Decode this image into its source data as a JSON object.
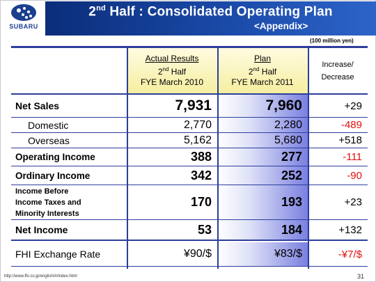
{
  "brand": {
    "logo_text": "SUBARU"
  },
  "header": {
    "title_pre": "2",
    "title_sup": "nd",
    "title_post": " Half : Consolidated Operating Plan",
    "subtitle": "<Appendix>"
  },
  "unit": "(100 million yen)",
  "columns": {
    "actual": {
      "line1": "Actual Results",
      "line2a": "2",
      "line2sup": "nd",
      "line2b": " Half",
      "line3": "FYE March 2010"
    },
    "plan": {
      "line1": "Plan",
      "line2a": "2",
      "line2sup": "nd",
      "line2b": " Half",
      "line3": "FYE March 2011"
    },
    "change": {
      "line1": "Increase/",
      "line2": "Decrease"
    }
  },
  "rows": [
    {
      "label": "Net Sales",
      "actual": "7,931",
      "plan": "7,960",
      "change": "+29"
    },
    {
      "label": "Domestic",
      "actual": "2,770",
      "plan": "2,280",
      "change": "-489"
    },
    {
      "label": "Overseas",
      "actual": "5,162",
      "plan": "5,680",
      "change": "+518"
    },
    {
      "label": "Operating Income",
      "actual": "388",
      "plan": "277",
      "change": "-111"
    },
    {
      "label": "Ordinary Income",
      "actual": "342",
      "plan": "252",
      "change": "-90"
    },
    {
      "label_l1": "Income Before",
      "label_l2": "Income Taxes and",
      "label_l3": "Minority Interests",
      "actual": "170",
      "plan": "193",
      "change": "+23"
    },
    {
      "label": "Net Income",
      "actual": "53",
      "plan": "184",
      "change": "+132"
    },
    {
      "label": "FHI Exchange Rate",
      "actual": "¥90/$",
      "plan": "¥83/$",
      "change": "-¥7/$"
    }
  ],
  "colors": {
    "header_blue": "#0b2d7a",
    "negative": "#e01010",
    "rule": "#2c3e9a"
  },
  "footer": {
    "url": "http://www.fhi.co.jp/english/ir/index.html",
    "page": "31"
  }
}
